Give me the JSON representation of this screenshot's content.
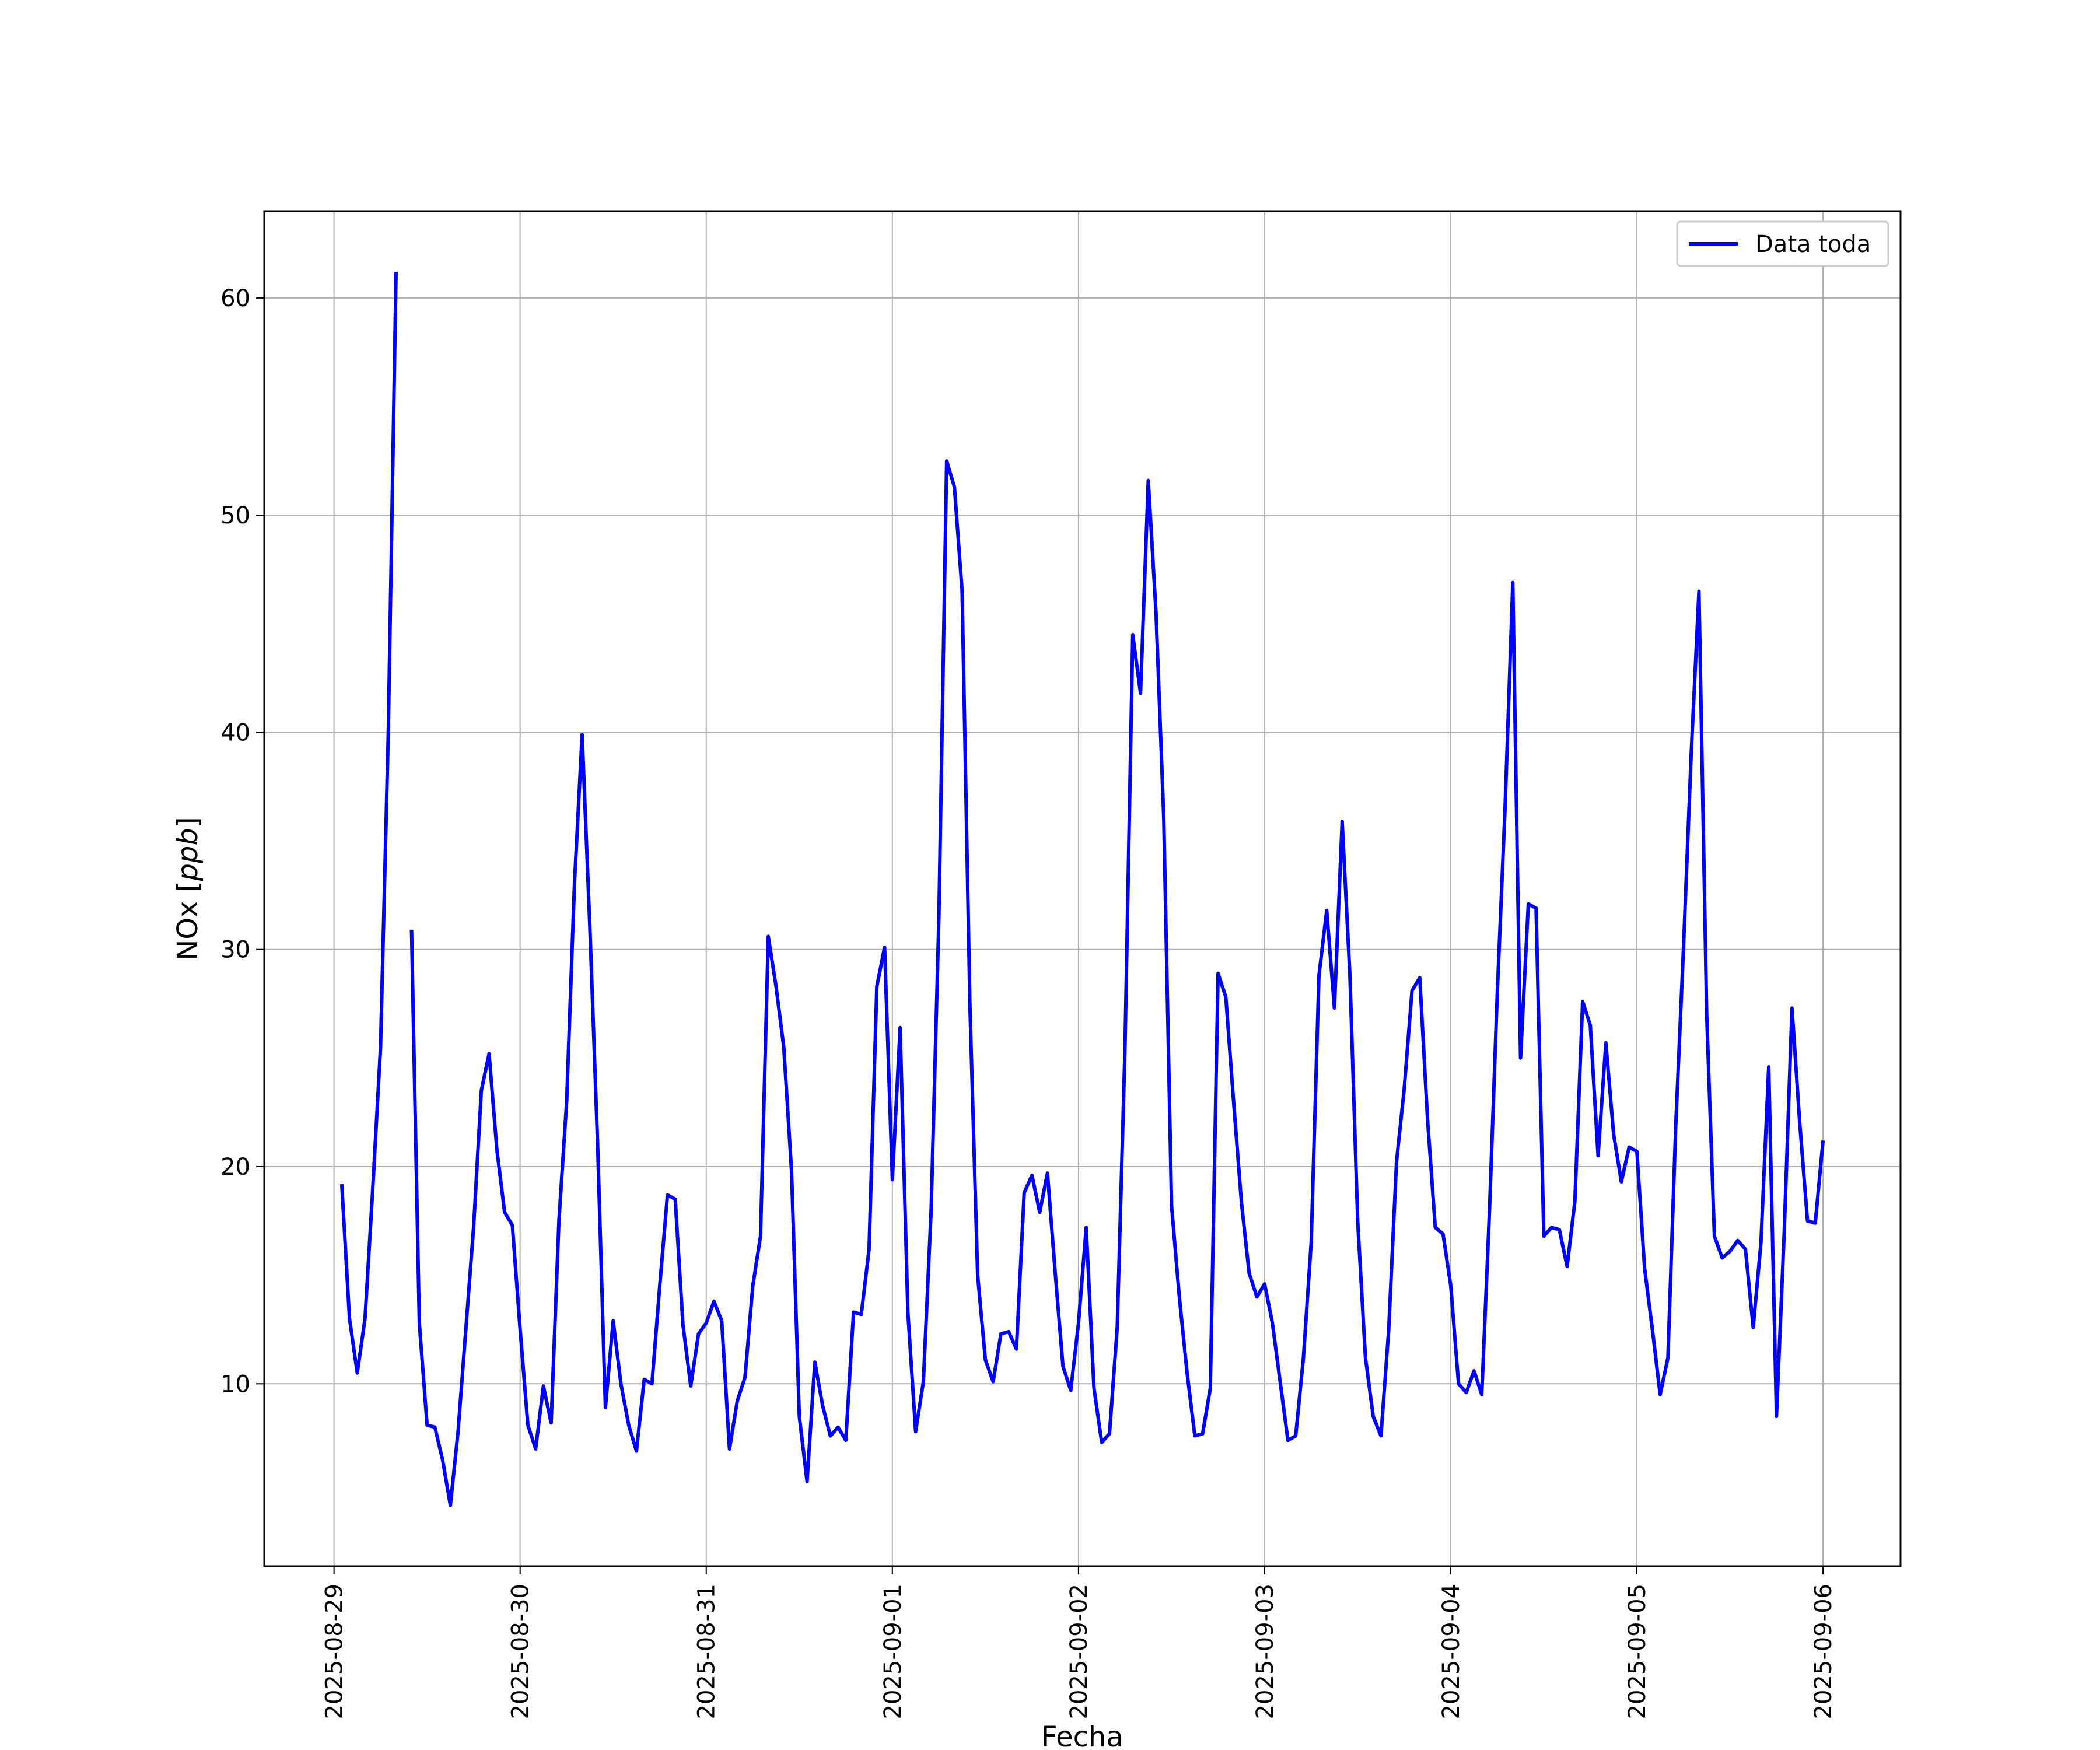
{
  "chart_data": {
    "type": "line",
    "title": "",
    "xlabel": "Fecha",
    "ylabel": "NOx [ppb]",
    "x_ticks": [
      "2025-08-29",
      "2025-08-30",
      "2025-08-31",
      "2025-09-01",
      "2025-09-02",
      "2025-09-03",
      "2025-09-04",
      "2025-09-05",
      "2025-09-06"
    ],
    "y_ticks": [
      10,
      20,
      30,
      40,
      50,
      60
    ],
    "xlim": [
      "2025-08-28T15:00",
      "2025-09-06T10:00"
    ],
    "ylim": [
      1.6,
      64
    ],
    "grid": true,
    "legend_position": "top-right",
    "series": [
      {
        "name": "Data toda",
        "color": "#0000ff",
        "points": [
          [
            "2025-08-29T01:00",
            19.2
          ],
          [
            "2025-08-29T02:00",
            13.0
          ],
          [
            "2025-08-29T03:00",
            10.5
          ],
          [
            "2025-08-29T04:00",
            13.0
          ],
          [
            "2025-08-29T05:00",
            19.0
          ],
          [
            "2025-08-29T06:00",
            25.5
          ],
          [
            "2025-08-29T07:00",
            40.0
          ],
          [
            "2025-08-29T08:00",
            61.2
          ],
          [
            "2025-08-29T10:00",
            30.9
          ],
          [
            "2025-08-29T11:00",
            12.8
          ],
          [
            "2025-08-29T12:00",
            8.1
          ],
          [
            "2025-08-29T13:00",
            8.0
          ],
          [
            "2025-08-29T14:00",
            6.5
          ],
          [
            "2025-08-29T15:00",
            4.4
          ],
          [
            "2025-08-29T16:00",
            7.8
          ],
          [
            "2025-08-29T17:00",
            12.5
          ],
          [
            "2025-08-29T18:00",
            17.2
          ],
          [
            "2025-08-29T19:00",
            23.5
          ],
          [
            "2025-08-29T20:00",
            25.2
          ],
          [
            "2025-08-29T21:00",
            20.8
          ],
          [
            "2025-08-29T22:00",
            17.9
          ],
          [
            "2025-08-29T23:00",
            17.3
          ],
          [
            "2025-08-30T00:00",
            12.5
          ],
          [
            "2025-08-30T01:00",
            8.1
          ],
          [
            "2025-08-30T02:00",
            7.0
          ],
          [
            "2025-08-30T03:00",
            9.9
          ],
          [
            "2025-08-30T04:00",
            8.2
          ],
          [
            "2025-08-30T05:00",
            17.5
          ],
          [
            "2025-08-30T06:00",
            23.0
          ],
          [
            "2025-08-30T07:00",
            33.0
          ],
          [
            "2025-08-30T08:00",
            39.9
          ],
          [
            "2025-08-30T09:00",
            31.0
          ],
          [
            "2025-08-30T10:00",
            21.0
          ],
          [
            "2025-08-30T11:00",
            8.9
          ],
          [
            "2025-08-30T12:00",
            12.9
          ],
          [
            "2025-08-30T13:00",
            10.0
          ],
          [
            "2025-08-30T14:00",
            8.1
          ],
          [
            "2025-08-30T15:00",
            6.9
          ],
          [
            "2025-08-30T16:00",
            10.2
          ],
          [
            "2025-08-30T17:00",
            10.0
          ],
          [
            "2025-08-30T18:00",
            14.5
          ],
          [
            "2025-08-30T19:00",
            18.7
          ],
          [
            "2025-08-30T20:00",
            18.5
          ],
          [
            "2025-08-30T21:00",
            12.7
          ],
          [
            "2025-08-30T22:00",
            9.9
          ],
          [
            "2025-08-30T23:00",
            12.3
          ],
          [
            "2025-08-31T00:00",
            12.8
          ],
          [
            "2025-08-31T01:00",
            13.8
          ],
          [
            "2025-08-31T02:00",
            12.9
          ],
          [
            "2025-08-31T03:00",
            7.0
          ],
          [
            "2025-08-31T04:00",
            9.2
          ],
          [
            "2025-08-31T05:00",
            10.3
          ],
          [
            "2025-08-31T06:00",
            14.5
          ],
          [
            "2025-08-31T07:00",
            16.8
          ],
          [
            "2025-08-31T08:00",
            30.6
          ],
          [
            "2025-08-31T09:00",
            28.3
          ],
          [
            "2025-08-31T10:00",
            25.5
          ],
          [
            "2025-08-31T11:00",
            19.8
          ],
          [
            "2025-08-31T12:00",
            8.5
          ],
          [
            "2025-08-31T13:00",
            5.5
          ],
          [
            "2025-08-31T14:00",
            11.0
          ],
          [
            "2025-08-31T15:00",
            9.0
          ],
          [
            "2025-08-31T16:00",
            7.6
          ],
          [
            "2025-08-31T17:00",
            8.0
          ],
          [
            "2025-08-31T18:00",
            7.4
          ],
          [
            "2025-08-31T19:00",
            13.3
          ],
          [
            "2025-08-31T20:00",
            13.2
          ],
          [
            "2025-08-31T21:00",
            16.2
          ],
          [
            "2025-08-31T22:00",
            28.3
          ],
          [
            "2025-08-31T23:00",
            30.1
          ],
          [
            "2025-09-01T00:00",
            19.4
          ],
          [
            "2025-09-01T01:00",
            26.4
          ],
          [
            "2025-09-01T02:00",
            13.3
          ],
          [
            "2025-09-01T03:00",
            7.8
          ],
          [
            "2025-09-01T04:00",
            10.1
          ],
          [
            "2025-09-01T05:00",
            18.0
          ],
          [
            "2025-09-01T06:00",
            31.5
          ],
          [
            "2025-09-01T07:00",
            52.5
          ],
          [
            "2025-09-01T08:00",
            51.3
          ],
          [
            "2025-09-01T09:00",
            46.5
          ],
          [
            "2025-09-01T10:00",
            27.5
          ],
          [
            "2025-09-01T11:00",
            15.0
          ],
          [
            "2025-09-01T12:00",
            11.1
          ],
          [
            "2025-09-01T13:00",
            10.1
          ],
          [
            "2025-09-01T14:00",
            12.3
          ],
          [
            "2025-09-01T15:00",
            12.4
          ],
          [
            "2025-09-01T16:00",
            11.6
          ],
          [
            "2025-09-01T17:00",
            18.8
          ],
          [
            "2025-09-01T18:00",
            19.6
          ],
          [
            "2025-09-01T19:00",
            17.9
          ],
          [
            "2025-09-01T20:00",
            19.7
          ],
          [
            "2025-09-01T21:00",
            15.1
          ],
          [
            "2025-09-01T22:00",
            10.8
          ],
          [
            "2025-09-01T23:00",
            9.7
          ],
          [
            "2025-09-02T00:00",
            12.8
          ],
          [
            "2025-09-02T01:00",
            17.2
          ],
          [
            "2025-09-02T02:00",
            9.8
          ],
          [
            "2025-09-02T03:00",
            7.3
          ],
          [
            "2025-09-02T04:00",
            7.7
          ],
          [
            "2025-09-02T05:00",
            12.6
          ],
          [
            "2025-09-02T06:00",
            25.5
          ],
          [
            "2025-09-02T07:00",
            44.5
          ],
          [
            "2025-09-02T08:00",
            41.8
          ],
          [
            "2025-09-02T09:00",
            51.6
          ],
          [
            "2025-09-02T10:00",
            45.5
          ],
          [
            "2025-09-02T11:00",
            36.0
          ],
          [
            "2025-09-02T12:00",
            18.2
          ],
          [
            "2025-09-02T13:00",
            14.0
          ],
          [
            "2025-09-02T14:00",
            10.5
          ],
          [
            "2025-09-02T15:00",
            7.6
          ],
          [
            "2025-09-02T16:00",
            7.7
          ],
          [
            "2025-09-02T17:00",
            9.8
          ],
          [
            "2025-09-02T18:00",
            28.9
          ],
          [
            "2025-09-02T19:00",
            27.8
          ],
          [
            "2025-09-02T20:00",
            23.0
          ],
          [
            "2025-09-02T21:00",
            18.4
          ],
          [
            "2025-09-02T22:00",
            15.1
          ],
          [
            "2025-09-02T23:00",
            14.0
          ],
          [
            "2025-09-03T00:00",
            14.6
          ],
          [
            "2025-09-03T01:00",
            12.8
          ],
          [
            "2025-09-03T02:00",
            10.1
          ],
          [
            "2025-09-03T03:00",
            7.4
          ],
          [
            "2025-09-03T04:00",
            7.6
          ],
          [
            "2025-09-03T05:00",
            11.2
          ],
          [
            "2025-09-03T06:00",
            16.5
          ],
          [
            "2025-09-03T07:00",
            28.8
          ],
          [
            "2025-09-03T08:00",
            31.8
          ],
          [
            "2025-09-03T09:00",
            27.3
          ],
          [
            "2025-09-03T10:00",
            35.9
          ],
          [
            "2025-09-03T11:00",
            28.8
          ],
          [
            "2025-09-03T12:00",
            17.5
          ],
          [
            "2025-09-03T13:00",
            11.2
          ],
          [
            "2025-09-03T14:00",
            8.5
          ],
          [
            "2025-09-03T15:00",
            7.6
          ],
          [
            "2025-09-03T16:00",
            12.5
          ],
          [
            "2025-09-03T17:00",
            20.2
          ],
          [
            "2025-09-03T18:00",
            23.6
          ],
          [
            "2025-09-03T19:00",
            28.1
          ],
          [
            "2025-09-03T20:00",
            28.7
          ],
          [
            "2025-09-03T21:00",
            22.2
          ],
          [
            "2025-09-03T22:00",
            17.2
          ],
          [
            "2025-09-03T23:00",
            16.9
          ],
          [
            "2025-09-04T00:00",
            14.5
          ],
          [
            "2025-09-04T01:00",
            10.0
          ],
          [
            "2025-09-04T02:00",
            9.6
          ],
          [
            "2025-09-04T03:00",
            10.6
          ],
          [
            "2025-09-04T04:00",
            9.5
          ],
          [
            "2025-09-04T05:00",
            18.0
          ],
          [
            "2025-09-04T06:00",
            28.0
          ],
          [
            "2025-09-04T07:00",
            36.5
          ],
          [
            "2025-09-04T08:00",
            46.9
          ],
          [
            "2025-09-04T09:00",
            25.0
          ],
          [
            "2025-09-04T10:00",
            32.1
          ],
          [
            "2025-09-04T11:00",
            31.9
          ],
          [
            "2025-09-04T12:00",
            16.8
          ],
          [
            "2025-09-04T13:00",
            17.2
          ],
          [
            "2025-09-04T14:00",
            17.1
          ],
          [
            "2025-09-04T15:00",
            15.4
          ],
          [
            "2025-09-04T16:00",
            18.4
          ],
          [
            "2025-09-04T17:00",
            27.6
          ],
          [
            "2025-09-04T18:00",
            26.5
          ],
          [
            "2025-09-04T19:00",
            20.5
          ],
          [
            "2025-09-04T20:00",
            25.7
          ],
          [
            "2025-09-04T21:00",
            21.5
          ],
          [
            "2025-09-04T22:00",
            19.3
          ],
          [
            "2025-09-04T23:00",
            20.9
          ],
          [
            "2025-09-05T00:00",
            20.7
          ],
          [
            "2025-09-05T01:00",
            15.3
          ],
          [
            "2025-09-05T02:00",
            12.5
          ],
          [
            "2025-09-05T03:00",
            9.5
          ],
          [
            "2025-09-05T04:00",
            11.2
          ],
          [
            "2025-09-05T05:00",
            21.8
          ],
          [
            "2025-09-05T06:00",
            30.0
          ],
          [
            "2025-09-05T07:00",
            39.0
          ],
          [
            "2025-09-05T08:00",
            46.5
          ],
          [
            "2025-09-05T09:00",
            27.0
          ],
          [
            "2025-09-05T10:00",
            16.8
          ],
          [
            "2025-09-05T11:00",
            15.8
          ],
          [
            "2025-09-05T12:00",
            16.1
          ],
          [
            "2025-09-05T13:00",
            16.6
          ],
          [
            "2025-09-05T14:00",
            16.2
          ],
          [
            "2025-09-05T15:00",
            12.6
          ],
          [
            "2025-09-05T16:00",
            16.5
          ],
          [
            "2025-09-05T17:00",
            24.6
          ],
          [
            "2025-09-05T18:00",
            8.5
          ],
          [
            "2025-09-05T19:00",
            17.0
          ],
          [
            "2025-09-05T20:00",
            27.3
          ],
          [
            "2025-09-05T21:00",
            22.0
          ],
          [
            "2025-09-05T22:00",
            17.5
          ],
          [
            "2025-09-05T23:00",
            17.4
          ],
          [
            "2025-09-06T00:00",
            21.2
          ]
        ]
      }
    ]
  }
}
